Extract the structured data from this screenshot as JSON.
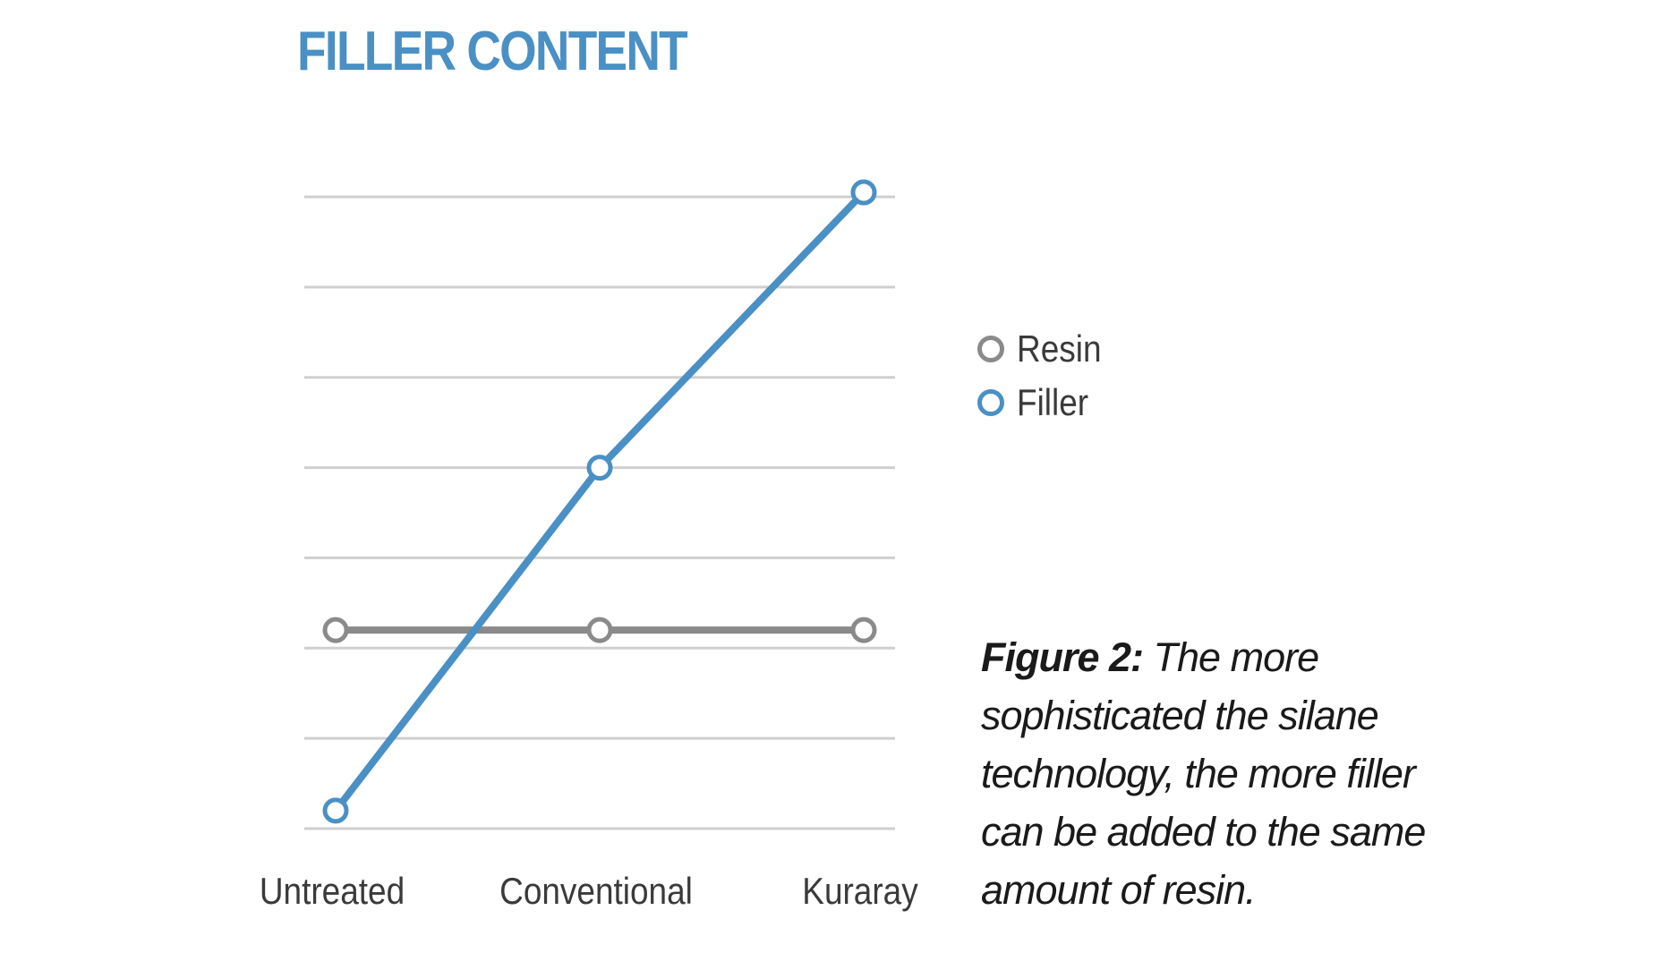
{
  "title": "FILLER CONTENT",
  "colors": {
    "title": "#4a90c4",
    "filler": "#4a90c4",
    "resin": "#8a8a8a",
    "grid": "#cfcfcf",
    "tick_text": "#3a3a3a"
  },
  "chart_data": {
    "type": "line",
    "categories": [
      "Untreated",
      "Conventional",
      "Kuraray"
    ],
    "series": [
      {
        "name": "Resin",
        "values": [
          2.2,
          2.2,
          2.2
        ],
        "color": "#8a8a8a"
      },
      {
        "name": "Filler",
        "values": [
          0.2,
          4.0,
          7.05
        ],
        "color": "#4a90c4"
      }
    ],
    "ylim": [
      0,
      7
    ],
    "y_gridlines": [
      0,
      1,
      2,
      3,
      4,
      5,
      6,
      7
    ],
    "grid": true,
    "y_tick_labels_visible": false,
    "legend_position": "right",
    "marker": "hollow-circle"
  },
  "legend": {
    "items": [
      {
        "label": "Resin",
        "color": "#8a8a8a"
      },
      {
        "label": "Filler",
        "color": "#4a90c4"
      }
    ]
  },
  "caption": {
    "lead": "Figure 2:",
    "text": " The more sophisticated the silane technology, the more filler can be added to the same amount of resin."
  }
}
